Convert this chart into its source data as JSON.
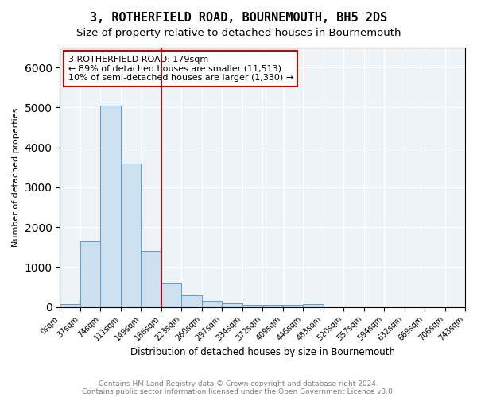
{
  "title": "3, ROTHERFIELD ROAD, BOURNEMOUTH, BH5 2DS",
  "subtitle": "Size of property relative to detached houses in Bournemouth",
  "xlabel": "Distribution of detached houses by size in Bournemouth",
  "ylabel": "Number of detached properties",
  "bin_labels": [
    "0sqm",
    "37sqm",
    "74sqm",
    "111sqm",
    "149sqm",
    "186sqm",
    "223sqm",
    "260sqm",
    "297sqm",
    "334sqm",
    "372sqm",
    "409sqm",
    "446sqm",
    "483sqm",
    "520sqm",
    "557sqm",
    "594sqm",
    "632sqm",
    "669sqm",
    "706sqm",
    "743sqm"
  ],
  "bar_heights": [
    75,
    1650,
    5050,
    3600,
    1400,
    600,
    285,
    145,
    95,
    60,
    45,
    55,
    65,
    0,
    0,
    0,
    0,
    0,
    0,
    0
  ],
  "bar_color": "#cce0f0",
  "bar_edge_color": "#5b9bd5",
  "vline_x": 5,
  "vline_color": "#cc0000",
  "ylim": [
    0,
    6500
  ],
  "annotation_text": "3 ROTHERFIELD ROAD: 179sqm\n← 89% of detached houses are smaller (11,513)\n10% of semi-detached houses are larger (1,330) →",
  "annotation_box_color": "#cc0000",
  "bg_color": "#eef3f8",
  "footer1": "Contains HM Land Registry data © Crown copyright and database right 2024.",
  "footer2": "Contains public sector information licensed under the Open Government Licence v3.0.",
  "title_fontsize": 11,
  "subtitle_fontsize": 9.5
}
